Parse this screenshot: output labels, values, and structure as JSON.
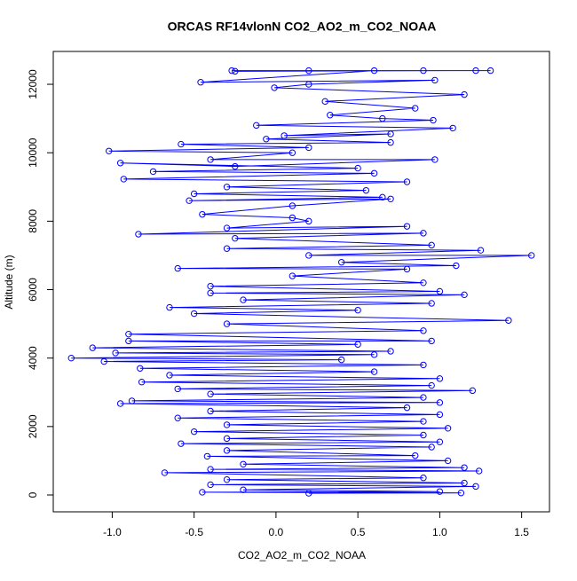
{
  "chart_data": {
    "type": "line",
    "title": "ORCAS RF14vlonN CO2_AO2_m_CO2_NOAA",
    "x_label": "CO2_AO2_m_CO2_NOAA",
    "y_label": "Altitude (m)",
    "color": "#0000ff",
    "markers": true,
    "xlim": [
      -1.36,
      1.67
    ],
    "ylim": [
      -492,
      12960
    ],
    "xticks": [
      {
        "value": -1,
        "label": "-1.0"
      },
      -0.5,
      {
        "value": 0,
        "label": "0.0"
      },
      0.5,
      {
        "value": 1,
        "label": "1.0"
      },
      1.5
    ],
    "yticks": [
      0,
      2000,
      4000,
      6000,
      8000,
      10000,
      12000
    ],
    "x": [
      -0.27,
      1.31,
      0.2,
      0.9,
      -0.25,
      1.22,
      0.6,
      -0.46,
      0.97,
      0.2,
      -0.01,
      1.15,
      0.3,
      0.85,
      0.33,
      0.65,
      0.96,
      -0.12,
      1.08,
      0.05,
      0.7,
      -0.06,
      0.7,
      -0.58,
      0.2,
      -1.02,
      0.1,
      -0.4,
      0.97,
      -0.25,
      -0.95,
      0.5,
      -0.75,
      0.6,
      -0.93,
      0.8,
      -0.3,
      0.55,
      -0.5,
      0.65,
      -0.53,
      0.7,
      0.1,
      -0.45,
      0.1,
      0.2,
      -0.3,
      0.8,
      -0.84,
      0.9,
      -0.25,
      0.95,
      -0.3,
      1.25,
      0.2,
      1.56,
      0.4,
      1.1,
      -0.6,
      0.8,
      0.1,
      0.9,
      -0.4,
      1.0,
      -0.4,
      1.15,
      -0.2,
      0.95,
      -0.65,
      0.5,
      -0.5,
      1.42,
      -0.3,
      0.9,
      -0.9,
      0.95,
      -0.9,
      0.5,
      -1.12,
      0.7,
      -0.98,
      0.6,
      -1.25,
      0.4,
      -1.05,
      0.9,
      -0.83,
      0.6,
      -0.65,
      1.0,
      -0.82,
      0.95,
      -0.6,
      1.2,
      -0.4,
      0.9,
      -0.88,
      1.0,
      -0.95,
      0.8,
      -0.4,
      1.0,
      -0.6,
      0.9,
      -0.3,
      1.05,
      -0.5,
      0.9,
      -0.3,
      1.0,
      -0.58,
      0.95,
      -0.3,
      0.85,
      -0.42,
      1.05,
      -0.2,
      1.15,
      -0.4,
      1.24,
      -0.68,
      0.9,
      -0.3,
      1.15,
      -0.4,
      1.22,
      -0.2,
      1.0,
      -0.45,
      1.13,
      0.2
    ],
    "values": [
      12400,
      12400,
      12400,
      12400,
      12380,
      12400,
      12400,
      12060,
      12120,
      12000,
      11900,
      11700,
      11500,
      11300,
      11100,
      11000,
      10950,
      10800,
      10720,
      10500,
      10550,
      10400,
      10300,
      10250,
      10150,
      10050,
      10000,
      9800,
      9800,
      9600,
      9700,
      9550,
      9450,
      9400,
      9230,
      9150,
      9000,
      8900,
      8800,
      8700,
      8600,
      8650,
      8450,
      8200,
      8100,
      8000,
      7800,
      7850,
      7620,
      7650,
      7500,
      7300,
      7200,
      7150,
      7000,
      7000,
      6800,
      6700,
      6620,
      6600,
      6400,
      6200,
      6100,
      5950,
      5900,
      5850,
      5700,
      5600,
      5480,
      5400,
      5300,
      5100,
      5000,
      4800,
      4700,
      4500,
      4500,
      4400,
      4300,
      4200,
      4150,
      4100,
      4000,
      3950,
      3900,
      3800,
      3700,
      3600,
      3500,
      3400,
      3300,
      3200,
      3100,
      3050,
      2950,
      2850,
      2750,
      2700,
      2670,
      2550,
      2450,
      2350,
      2250,
      2150,
      2050,
      1950,
      1850,
      1750,
      1650,
      1550,
      1500,
      1400,
      1300,
      1150,
      1130,
      1000,
      900,
      800,
      750,
      700,
      650,
      500,
      450,
      350,
      300,
      250,
      150,
      100,
      80,
      60,
      50
    ]
  }
}
